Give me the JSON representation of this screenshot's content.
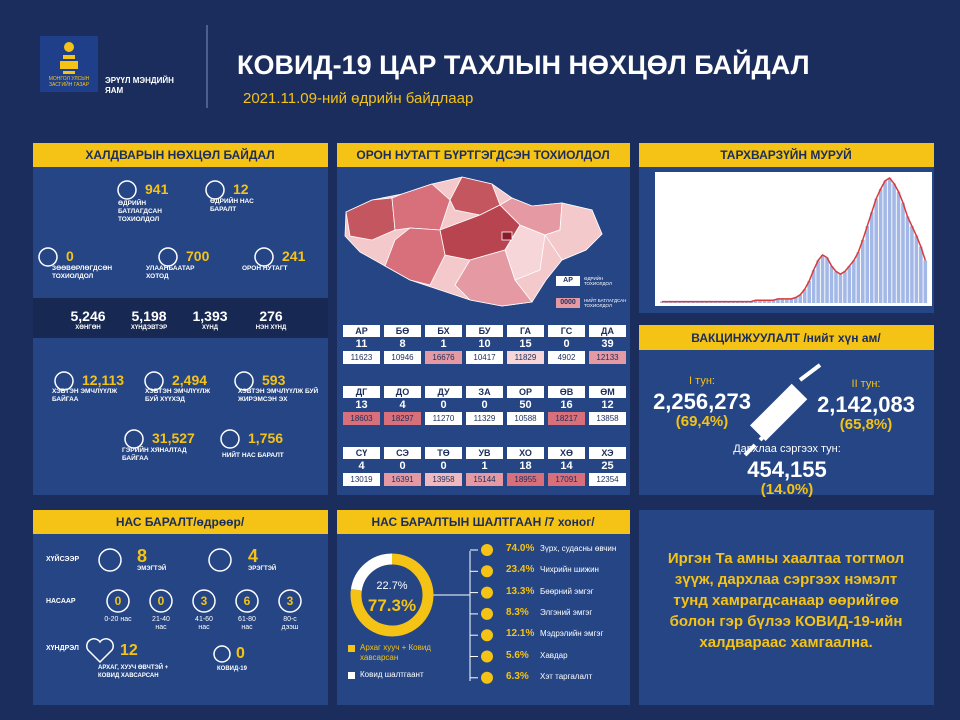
{
  "header": {
    "logo_text": "МОНГОЛ УЛСЫН ЗАСГИЙН ГАЗАР",
    "ministry": "ЭРҮҮЛ МЭНДИЙН ЯАМ",
    "title": "КОВИД-19 ЦАР ТАХЛЫН НӨХЦӨЛ БАЙДАЛ",
    "date": "2021.11.09-ний өдрийн байдлаар"
  },
  "infection": {
    "title": "ХАЛДВАРЫН НӨХЦӨЛ БАЙДАЛ",
    "stats": [
      {
        "value": "941",
        "label": "ӨДРИЙН БАТЛАГДСАН ТОХИОЛДОЛ"
      },
      {
        "value": "12",
        "label": "ӨДРИЙН НАС БАРАЛТ"
      },
      {
        "value": "0",
        "label": "ЗӨӨВӨРЛӨГДСӨН ТОХИОЛДОЛ"
      },
      {
        "value": "700",
        "label": "УЛААНБААТАР ХОТОД"
      },
      {
        "value": "241",
        "label": "ОРОН НУТАГТ"
      },
      {
        "value": "12,113",
        "label": "ХЭВТЭН ЭМЧЛҮҮЛЖ БАЙГАА"
      },
      {
        "value": "2,494",
        "label": "ХЭВТЭН ЭМЧЛҮҮЛЖ БУЙ ХҮҮХЭД"
      },
      {
        "value": "593",
        "label": "ХЭВТЭН ЭМЧЛҮҮЛЖ БУЙ ЖИРЭМСЭН ЭХ"
      },
      {
        "value": "31,527",
        "label": "ГЭРИЙН ХЯНАЛТАД БАЙГАА"
      },
      {
        "value": "1,756",
        "label": "НИЙТ НАС БАРАЛТ"
      }
    ],
    "severity": [
      {
        "value": "5,246",
        "label": "ХӨНГӨН"
      },
      {
        "value": "5,198",
        "label": "ХҮНДЭВТЭР"
      },
      {
        "value": "1,393",
        "label": "ХҮНД"
      },
      {
        "value": "276",
        "label": "НЭН ХҮНД"
      }
    ]
  },
  "map": {
    "title": "ОРОН НУТАГТ БҮРТГЭГДСЭН ТОХИОЛДОЛ",
    "legend": [
      {
        "code": "АР",
        "label": "ӨДРИЙН ТОХИОЛДОЛ"
      },
      {
        "code": "0000",
        "label": "НИЙТ БАТЛАГДСАН ТОХИОЛДОЛ"
      }
    ],
    "provinces": [
      {
        "code": "АР",
        "daily": "11",
        "total": "11623",
        "color": "#ffffff"
      },
      {
        "code": "БӨ",
        "daily": "8",
        "total": "10946",
        "color": "#ffffff"
      },
      {
        "code": "БХ",
        "daily": "1",
        "total": "16676",
        "color": "#e59aa3"
      },
      {
        "code": "БУ",
        "daily": "10",
        "total": "10417",
        "color": "#ffffff"
      },
      {
        "code": "ГА",
        "daily": "15",
        "total": "11829",
        "color": "#f7d6d9"
      },
      {
        "code": "ГС",
        "daily": "0",
        "total": "4902",
        "color": "#ffffff"
      },
      {
        "code": "ДА",
        "daily": "39",
        "total": "12133",
        "color": "#e59aa3"
      },
      {
        "code": "ДГ",
        "daily": "13",
        "total": "18603",
        "color": "#d8707c"
      },
      {
        "code": "ДО",
        "daily": "4",
        "total": "18297",
        "color": "#d8707c"
      },
      {
        "code": "ДУ",
        "daily": "0",
        "total": "11270",
        "color": "#ffffff"
      },
      {
        "code": "ЗА",
        "daily": "0",
        "total": "11329",
        "color": "#ffffff"
      },
      {
        "code": "ОР",
        "daily": "50",
        "total": "10588",
        "color": "#ffffff"
      },
      {
        "code": "ӨВ",
        "daily": "16",
        "total": "18217",
        "color": "#d8707c"
      },
      {
        "code": "ӨМ",
        "daily": "12",
        "total": "13858",
        "color": "#ffffff"
      },
      {
        "code": "СҮ",
        "daily": "4",
        "total": "13019",
        "color": "#ffffff"
      },
      {
        "code": "СЭ",
        "daily": "0",
        "total": "16391",
        "color": "#e59aa3"
      },
      {
        "code": "ТӨ",
        "daily": "0",
        "total": "13958",
        "color": "#f0b9bf"
      },
      {
        "code": "УВ",
        "daily": "1",
        "total": "15144",
        "color": "#e59aa3"
      },
      {
        "code": "ХО",
        "daily": "18",
        "total": "18955",
        "color": "#d8707c"
      },
      {
        "code": "ХӨ",
        "daily": "14",
        "total": "17091",
        "color": "#d8707c"
      },
      {
        "code": "ХЭ",
        "daily": "25",
        "total": "12354",
        "color": "#ffffff"
      }
    ]
  },
  "epi_curve": {
    "title": "ТАРХВАРЗҮЙН МУРУЙ",
    "type": "bar",
    "color": "#a3b8e6",
    "line_color": "#d83b3b",
    "values": [
      1,
      1,
      1,
      1,
      1,
      1,
      1,
      1,
      1,
      1,
      1,
      1,
      1,
      1,
      1,
      1,
      1,
      1,
      1,
      1,
      1,
      2,
      2,
      2,
      2,
      2,
      3,
      3,
      3,
      3,
      4,
      6,
      10,
      16,
      24,
      31,
      35,
      33,
      27,
      23,
      21,
      23,
      27,
      31,
      37,
      46,
      56,
      66,
      76,
      83,
      89,
      91,
      87,
      81,
      73,
      63,
      56,
      49,
      41,
      31
    ]
  },
  "vaccination": {
    "title": "ВАКЦИНЖУУЛАЛТ /нийт хүн ам/",
    "doses": [
      {
        "label": "I тун:",
        "count": "2,256,273",
        "percent": "(69,4%)"
      },
      {
        "label": "II тун:",
        "count": "2,142,083",
        "percent": "(65,8%)"
      },
      {
        "label": "Дархлаа сэргээх тун:",
        "count": "454,155",
        "percent": "(14.0%)"
      }
    ]
  },
  "deaths": {
    "title": "НАС БАРАЛТ/өдрөөр/",
    "row_labels": [
      "ХҮЙСЭЭР",
      "НАСААР",
      "ХҮНДРЭЛ"
    ],
    "sex": [
      {
        "value": "8",
        "label": "ЭМЭГТЭЙ"
      },
      {
        "value": "4",
        "label": "ЭРЭГТЭЙ"
      }
    ],
    "age": [
      {
        "value": "0",
        "label": "0-20 нас"
      },
      {
        "value": "0",
        "label": "21-40 нас"
      },
      {
        "value": "3",
        "label": "41-60 нас"
      },
      {
        "value": "6",
        "label": "61-80 нас"
      },
      {
        "value": "3",
        "label": "80-с дээш"
      }
    ],
    "comorbidity": [
      {
        "value": "12",
        "label": "АРХАГ, ХУУЧ ӨВЧТЭЙ + КОВИД ХАВСАРСАН"
      },
      {
        "value": "0",
        "label": "КОВИД-19"
      }
    ]
  },
  "causes": {
    "title": "НАС БАРАЛТЫН ШАЛТГААН /7 хоног/",
    "donut": {
      "values": [
        77.3,
        22.7
      ],
      "value_labels": [
        "77.3%",
        "22.7%"
      ],
      "names": [
        "Архаг хууч + Ковид хавсарсан",
        "Ковид шалтгаант"
      ],
      "colors": [
        "#f5c315",
        "#ffffff"
      ]
    },
    "list": [
      {
        "percent": "74.0%",
        "label": "Зүрх, судасны өвчин"
      },
      {
        "percent": "23.4%",
        "label": "Чихрийн шижин"
      },
      {
        "percent": "13.3%",
        "label": "Бөөрний эмгэг"
      },
      {
        "percent": "8.3%",
        "label": "Элгэний эмгэг"
      },
      {
        "percent": "12.1%",
        "label": "Мэдрэлийн эмгэг"
      },
      {
        "percent": "5.6%",
        "label": "Хавдар"
      },
      {
        "percent": "6.3%",
        "label": "Хэт таргалалт"
      }
    ]
  },
  "message": "Иргэн Та амны хаалтаа тогтмол зүүж, дархлаа сэргээх нэмэлт тунд хамрагдсанаар өөрийгөө болон гэр бүлээ КОВИД-19-ийн халдвараас хамгаална."
}
